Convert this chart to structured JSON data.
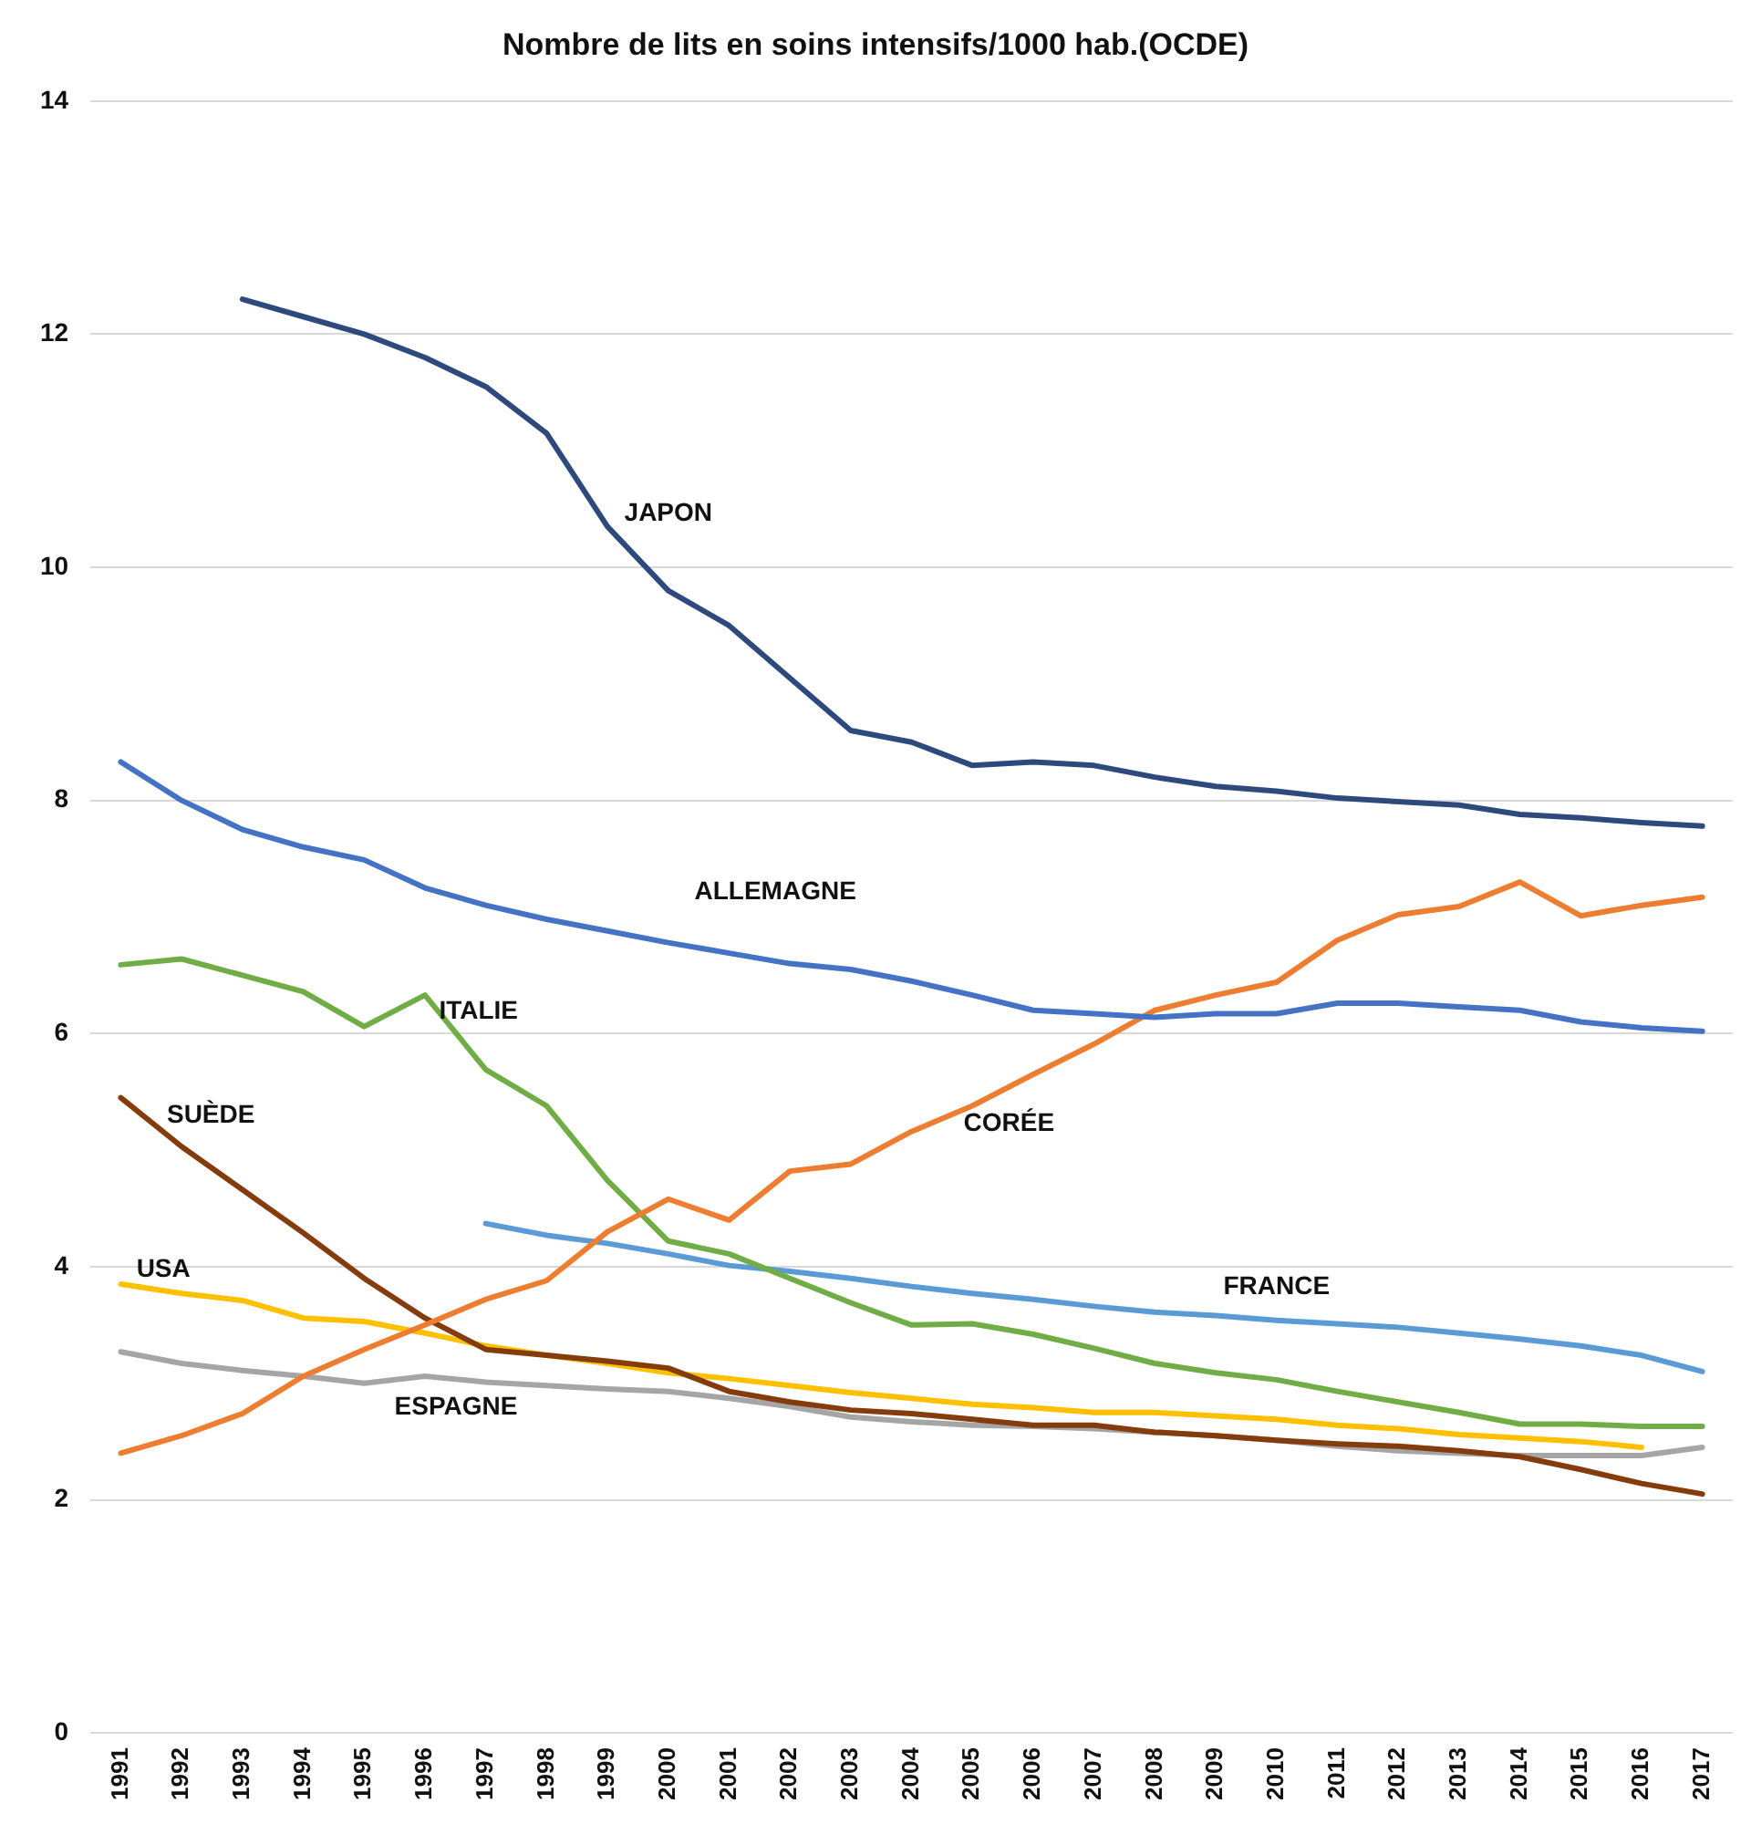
{
  "chart_data": {
    "type": "line",
    "title": "Nombre de lits en soins intensifs/1000 hab.(OCDE)",
    "categories": [
      "1991",
      "1992",
      "1993",
      "1994",
      "1995",
      "1996",
      "1997",
      "1998",
      "1999",
      "2000",
      "2001",
      "2002",
      "2003",
      "2004",
      "2005",
      "2006",
      "2007",
      "2008",
      "2009",
      "2010",
      "2011",
      "2012",
      "2013",
      "2014",
      "2015",
      "2016",
      "2017"
    ],
    "series": [
      {
        "name": "JAPON",
        "color": "#2e4a7d",
        "values": [
          null,
          null,
          12.3,
          12.15,
          12.0,
          11.8,
          11.55,
          11.15,
          10.35,
          9.8,
          9.5,
          9.05,
          8.6,
          8.5,
          8.3,
          8.33,
          8.3,
          8.2,
          8.12,
          8.08,
          8.02,
          7.99,
          7.96,
          7.88,
          7.85,
          7.81,
          7.78
        ]
      },
      {
        "name": "ALLEMAGNE",
        "color": "#4472c4",
        "values": [
          8.33,
          8.0,
          7.75,
          7.6,
          7.49,
          7.25,
          7.1,
          6.98,
          6.88,
          6.78,
          6.69,
          6.6,
          6.55,
          6.45,
          6.33,
          6.2,
          6.17,
          6.14,
          6.17,
          6.17,
          6.26,
          6.26,
          6.23,
          6.2,
          6.1,
          6.05,
          6.02
        ]
      },
      {
        "name": "CORÉE",
        "color": "#ed7d31",
        "values": [
          2.4,
          2.55,
          2.74,
          3.06,
          3.29,
          3.5,
          3.72,
          3.88,
          4.3,
          4.58,
          4.4,
          4.82,
          4.88,
          5.16,
          5.38,
          5.65,
          5.91,
          6.2,
          6.33,
          6.44,
          6.8,
          7.02,
          7.09,
          7.3,
          7.01,
          7.1,
          7.17
        ]
      },
      {
        "name": "ITALIE",
        "color": "#70ad47",
        "values": [
          6.59,
          6.64,
          6.5,
          6.36,
          6.06,
          6.33,
          5.69,
          5.38,
          4.74,
          4.22,
          4.11,
          3.9,
          3.69,
          3.5,
          3.51,
          3.42,
          3.3,
          3.17,
          3.09,
          3.03,
          2.93,
          2.84,
          2.75,
          2.65,
          2.65,
          2.63,
          2.63
        ]
      },
      {
        "name": "SUÈDE",
        "color": "#843c0c",
        "values": [
          5.45,
          5.03,
          4.66,
          4.29,
          3.9,
          3.56,
          3.29,
          3.24,
          3.19,
          3.13,
          2.93,
          2.84,
          2.77,
          2.74,
          2.69,
          2.64,
          2.64,
          2.58,
          2.55,
          2.51,
          2.48,
          2.46,
          2.42,
          2.37,
          2.26,
          2.14,
          2.05
        ]
      },
      {
        "name": "USA",
        "color": "#ffc000",
        "values": [
          3.85,
          3.77,
          3.71,
          3.56,
          3.53,
          3.43,
          3.32,
          3.24,
          3.17,
          3.09,
          3.04,
          2.98,
          2.92,
          2.87,
          2.82,
          2.79,
          2.75,
          2.75,
          2.72,
          2.69,
          2.64,
          2.61,
          2.56,
          2.53,
          2.5,
          2.45,
          null
        ]
      },
      {
        "name": "ESPAGNE",
        "color": "#a5a5a5",
        "values": [
          3.27,
          3.17,
          3.11,
          3.06,
          3.0,
          3.06,
          3.01,
          2.98,
          2.95,
          2.93,
          2.87,
          2.8,
          2.71,
          2.67,
          2.64,
          2.63,
          2.61,
          2.58,
          2.55,
          2.51,
          2.46,
          2.42,
          2.4,
          2.38,
          2.38,
          2.38,
          2.45
        ]
      },
      {
        "name": "FRANCE",
        "color": "#5b9bd5",
        "values": [
          null,
          null,
          null,
          null,
          null,
          null,
          4.37,
          4.27,
          4.2,
          4.11,
          4.01,
          3.96,
          3.9,
          3.83,
          3.77,
          3.72,
          3.66,
          3.61,
          3.58,
          3.54,
          3.51,
          3.48,
          3.43,
          3.38,
          3.32,
          3.24,
          3.1
        ]
      }
    ],
    "ylim": [
      0,
      14
    ],
    "yticks": [
      0,
      2,
      4,
      6,
      8,
      10,
      12,
      14
    ],
    "grid": "y",
    "legend": false,
    "marker": "none",
    "line_style": "solid"
  }
}
